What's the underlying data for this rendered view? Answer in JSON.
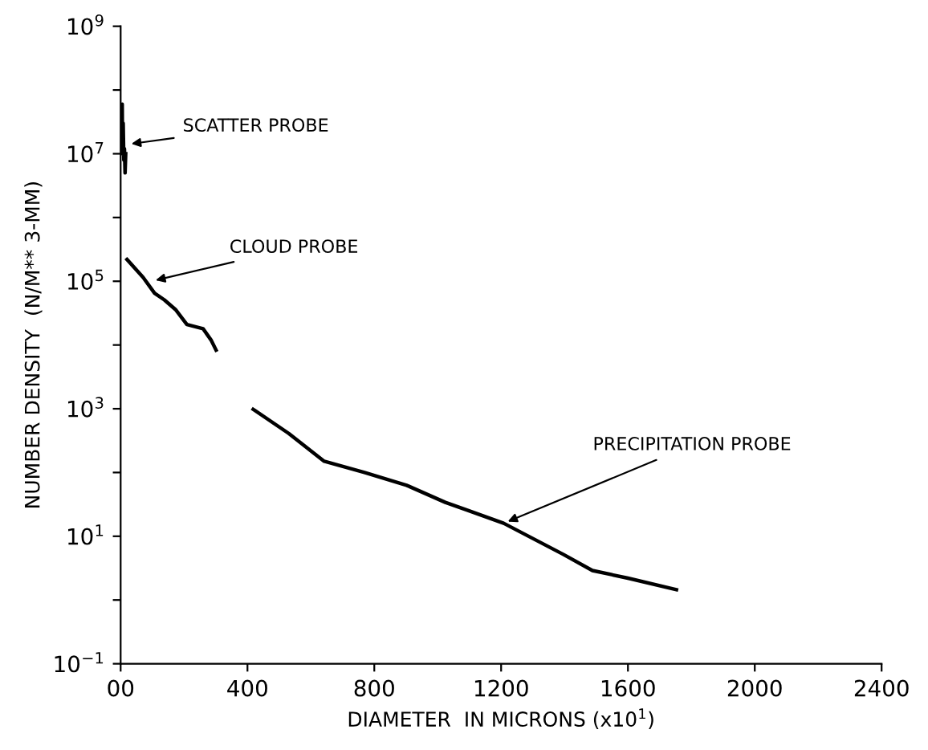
{
  "chart_data": {
    "type": "line",
    "xlabel": "DIAMETER  IN MICRONS (x10$^{1}$)",
    "ylabel": "NUMBER DENSITY  (N/M** 3-MM)",
    "log": "y",
    "xlim": [
      0,
      2400
    ],
    "ylim": [
      0.1,
      1000000000
    ],
    "xticks": [
      {
        "value": 0,
        "label": "00"
      },
      400,
      800,
      1200,
      1600,
      2000,
      2400
    ],
    "yticks": [
      {
        "value": 0.1,
        "label": "10$^{−1}$"
      },
      {
        "value": 1,
        "label": null
      },
      {
        "value": 10,
        "label": "10$^{1}$"
      },
      {
        "value": 100,
        "label": null
      },
      {
        "value": 1000,
        "label": "10$^{3}$"
      },
      {
        "value": 10000,
        "label": null
      },
      {
        "value": 100000,
        "label": "10$^{5}$"
      },
      {
        "value": 1000000,
        "label": null
      },
      {
        "value": 10000000,
        "label": "10$^{7}$"
      },
      {
        "value": 100000000,
        "label": null
      },
      {
        "value": 1000000000,
        "label": "10$^{9}$"
      }
    ],
    "grid": false,
    "series": [
      {
        "color": "#000000",
        "x": [
          2,
          4,
          5,
          6,
          8,
          10,
          12,
          14,
          16
        ],
        "values": [
          50000000,
          30000000,
          60000000,
          10000000,
          30000000,
          8000000,
          12000000,
          5000000,
          10000000
        ]
      },
      {
        "color": "#000000",
        "x": [
          20,
          71,
          107,
          138,
          173,
          209,
          260,
          285,
          301
        ],
        "values": [
          220000,
          115000,
          65000,
          51000,
          36000,
          21000,
          18000,
          12000,
          8300
        ]
      },
      {
        "color": "#000000",
        "x": [
          418,
          530,
          642,
          769,
          902,
          1024,
          1090,
          1208,
          1396,
          1488,
          1600,
          1753
        ],
        "values": [
          980,
          410,
          150,
          100,
          63,
          34,
          26,
          16,
          5.2,
          2.9,
          2.2,
          1.45
        ]
      }
    ],
    "annotations": [
      {
        "text": "SCATTER PROBE",
        "x": 20,
        "y": 14000000
      },
      {
        "text": "CLOUD PROBE",
        "x": 97,
        "y": 100000
      },
      {
        "text": "PRECIPITATION PROBE",
        "x": 1208,
        "y": 16
      }
    ]
  }
}
